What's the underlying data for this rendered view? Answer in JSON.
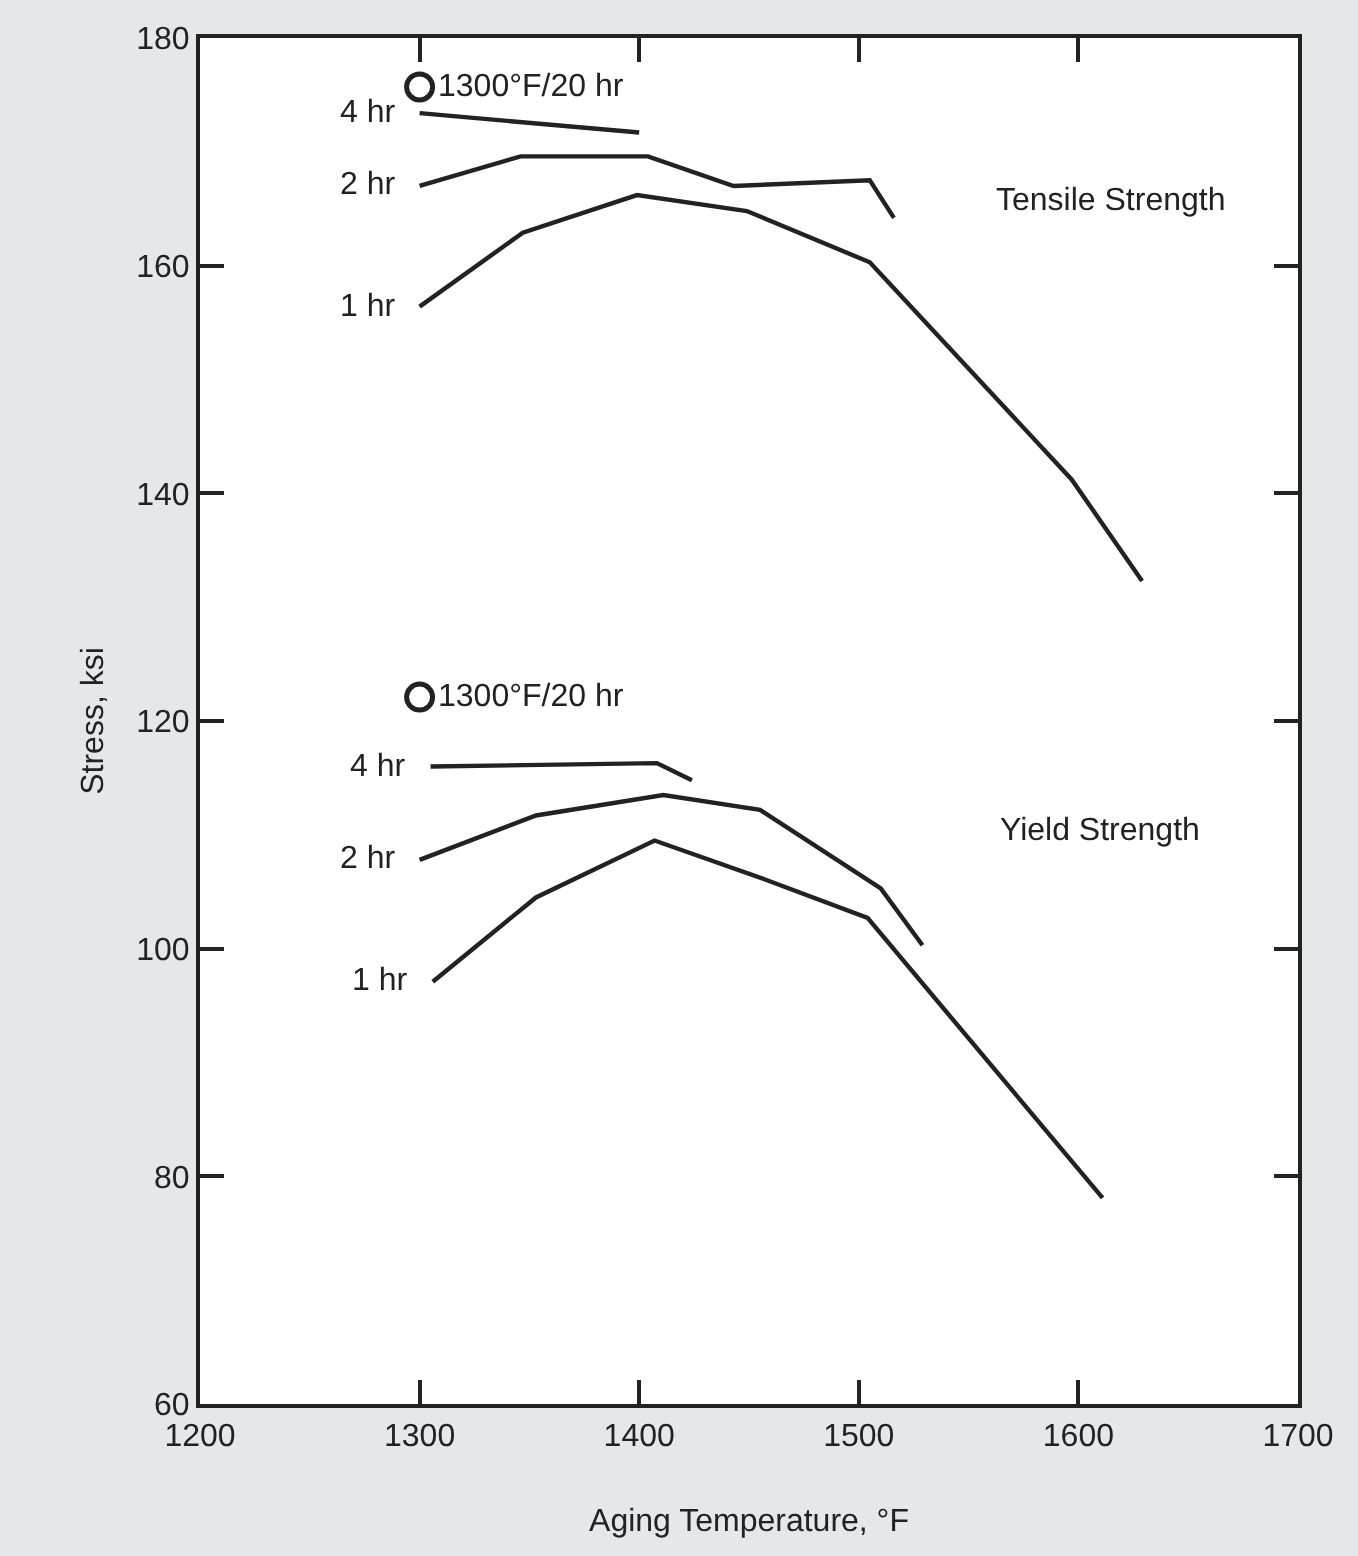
{
  "chart_data": {
    "type": "line",
    "xlabel": "Aging Temperature, °F",
    "ylabel": "Stress, ksi",
    "xlim": [
      1200,
      1700
    ],
    "xticks": [
      1200,
      1300,
      1400,
      1500,
      1600,
      1700
    ],
    "ylim": [
      60,
      180
    ],
    "yticks": [
      60,
      80,
      100,
      120,
      140,
      160,
      180
    ],
    "legend": "left",
    "marker": "none",
    "line_style": "solid",
    "series": [
      {
        "name": "1 hr",
        "color": "#222222",
        "x": [
          1300,
          1347,
          1399,
          1449,
          1505,
          1597,
          1629
        ],
        "values": [
          156.4,
          162.9,
          166.2,
          164.8,
          160.3,
          141.2,
          132.3
        ]
      },
      {
        "name": "2 hr",
        "color": "#222222",
        "x": [
          1300,
          1346,
          1404,
          1443,
          1505,
          1516
        ],
        "values": [
          167.0,
          169.6,
          169.6,
          167.0,
          167.5,
          164.2
        ]
      },
      {
        "name": "4 hr",
        "color": "#222222",
        "x": [
          1300,
          1400
        ],
        "values": [
          173.4,
          171.7
        ]
      },
      {
        "name": "1300°F/20 hr",
        "type": "scatter",
        "marker": "circle",
        "color": "#222222",
        "x": [
          1300
        ],
        "values": [
          175.7
        ]
      },
      {
        "name": "1 hr",
        "color": "#222222",
        "x": [
          1306,
          1353,
          1407,
          1457,
          1504,
          1611
        ],
        "values": [
          97.1,
          104.5,
          109.5,
          106.1,
          102.7,
          78.1
        ]
      },
      {
        "name": "2 hr",
        "color": "#222222",
        "x": [
          1300,
          1353,
          1411,
          1455,
          1510,
          1529
        ],
        "values": [
          107.8,
          111.7,
          113.5,
          112.2,
          105.3,
          100.3
        ]
      },
      {
        "name": "4 hr",
        "color": "#222222",
        "x": [
          1305,
          1408,
          1424
        ],
        "values": [
          116.0,
          116.3,
          114.8
        ]
      },
      {
        "name": "1300°F/20 hr",
        "type": "scatter",
        "marker": "circle",
        "color": "#222222",
        "x": [
          1300
        ],
        "values": [
          122.1
        ]
      }
    ],
    "annotations": [
      "Tensile Strength",
      "Yield Strength"
    ]
  }
}
